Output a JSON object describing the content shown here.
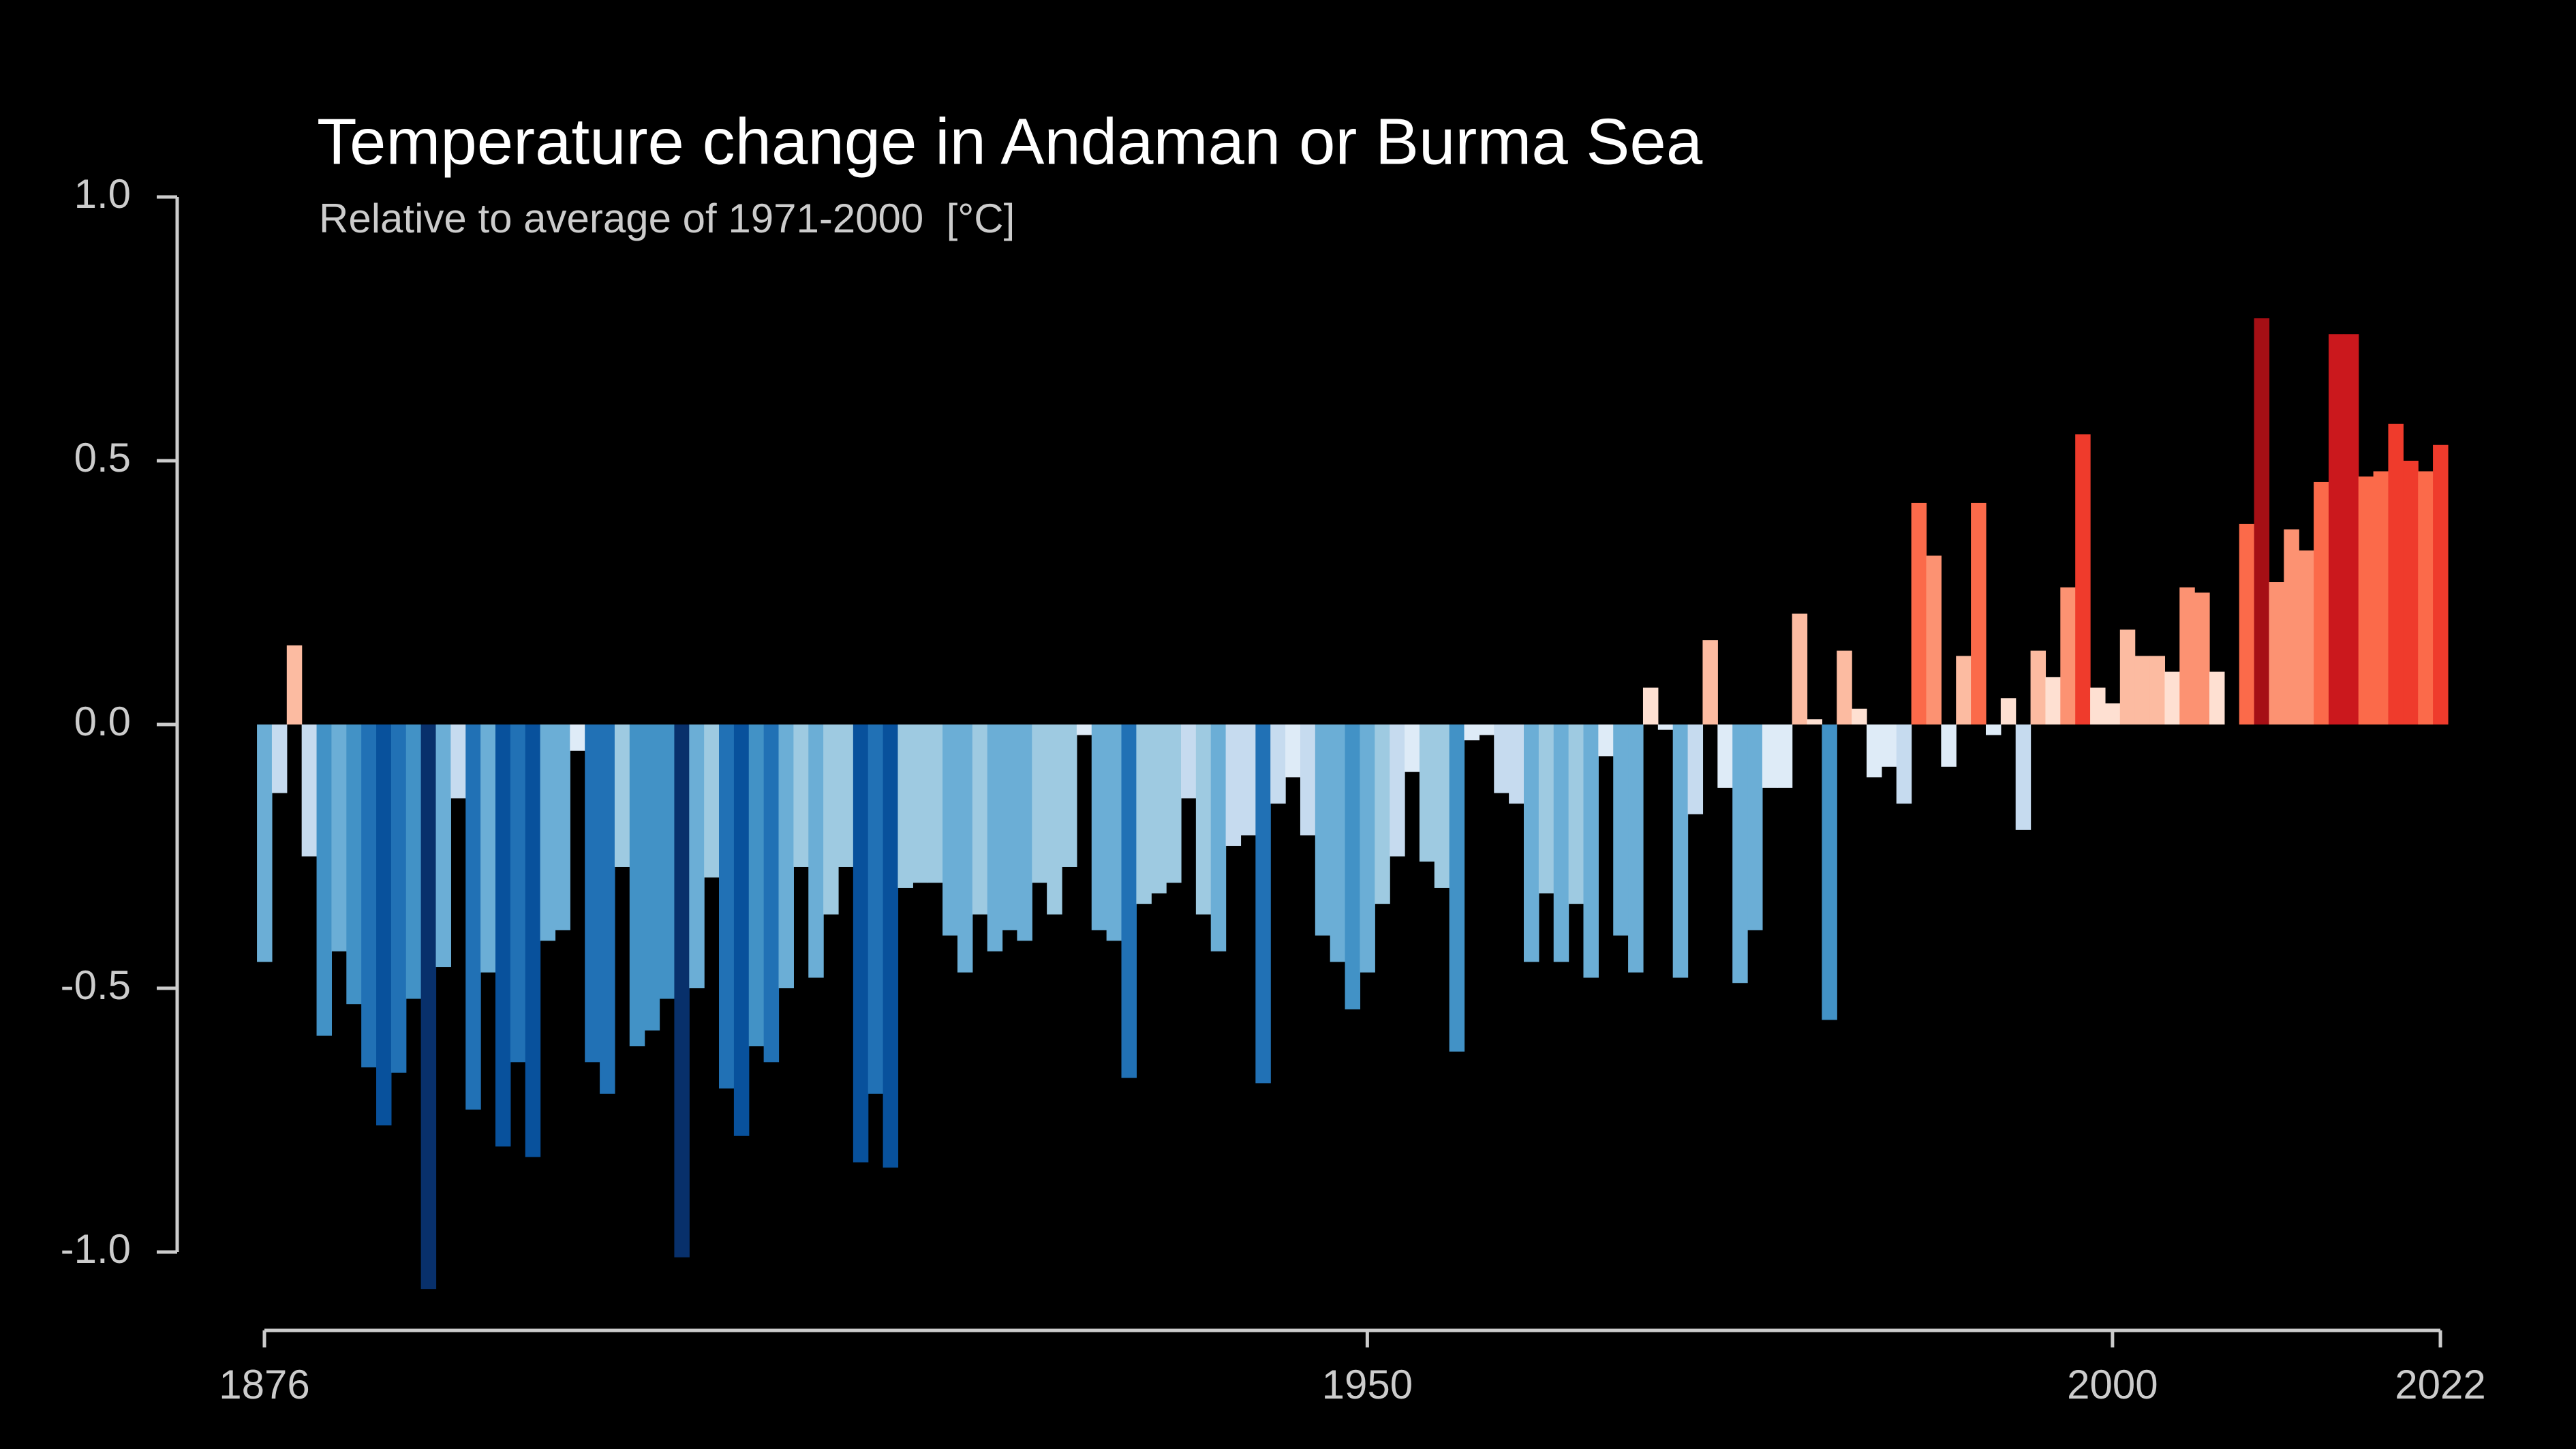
{
  "chart_data": {
    "type": "bar",
    "title": "Temperature change in Andaman or Burma Sea",
    "subtitle": "Relative to average of 1971-2000  [°C]",
    "x": [
      1876,
      1877,
      1878,
      1879,
      1880,
      1881,
      1882,
      1883,
      1884,
      1885,
      1886,
      1887,
      1888,
      1889,
      1890,
      1891,
      1892,
      1893,
      1894,
      1895,
      1896,
      1897,
      1898,
      1899,
      1900,
      1901,
      1902,
      1903,
      1904,
      1905,
      1906,
      1907,
      1908,
      1909,
      1910,
      1911,
      1912,
      1913,
      1914,
      1915,
      1916,
      1917,
      1918,
      1919,
      1920,
      1921,
      1922,
      1923,
      1924,
      1925,
      1926,
      1927,
      1928,
      1929,
      1930,
      1931,
      1932,
      1933,
      1934,
      1935,
      1936,
      1937,
      1938,
      1939,
      1940,
      1941,
      1942,
      1943,
      1944,
      1945,
      1946,
      1947,
      1948,
      1949,
      1950,
      1951,
      1952,
      1953,
      1954,
      1955,
      1956,
      1957,
      1958,
      1959,
      1960,
      1961,
      1962,
      1963,
      1964,
      1965,
      1966,
      1967,
      1968,
      1969,
      1970,
      1971,
      1972,
      1973,
      1974,
      1975,
      1976,
      1977,
      1978,
      1979,
      1980,
      1981,
      1982,
      1983,
      1984,
      1985,
      1986,
      1987,
      1988,
      1989,
      1990,
      1991,
      1992,
      1993,
      1994,
      1995,
      1996,
      1997,
      1998,
      1999,
      2000,
      2001,
      2002,
      2003,
      2004,
      2005,
      2006,
      2007,
      2008,
      2009,
      2010,
      2011,
      2012,
      2013,
      2014,
      2015,
      2016,
      2017,
      2018,
      2019,
      2020,
      2021,
      2022
    ],
    "values": [
      -0.45,
      -0.13,
      0.15,
      -0.25,
      -0.59,
      -0.43,
      -0.53,
      -0.65,
      -0.76,
      -0.66,
      -0.52,
      -1.07,
      -0.46,
      -0.14,
      -0.73,
      -0.47,
      -0.8,
      -0.64,
      -0.82,
      -0.41,
      -0.39,
      -0.05,
      -0.64,
      -0.7,
      -0.27,
      -0.61,
      -0.58,
      -0.52,
      -1.01,
      -0.5,
      -0.29,
      -0.69,
      -0.78,
      -0.61,
      -0.64,
      -0.5,
      -0.27,
      -0.48,
      -0.36,
      -0.27,
      -0.83,
      -0.7,
      -0.84,
      -0.31,
      -0.3,
      -0.3,
      -0.4,
      -0.47,
      -0.36,
      -0.43,
      -0.39,
      -0.41,
      -0.3,
      -0.36,
      -0.27,
      -0.02,
      -0.39,
      -0.41,
      -0.67,
      -0.34,
      -0.32,
      -0.3,
      -0.14,
      -0.36,
      -0.43,
      -0.23,
      -0.21,
      -0.68,
      -0.15,
      -0.1,
      -0.21,
      -0.4,
      -0.45,
      -0.54,
      -0.47,
      -0.34,
      -0.25,
      -0.09,
      -0.26,
      -0.31,
      -0.62,
      -0.03,
      -0.02,
      -0.13,
      -0.15,
      -0.45,
      -0.32,
      -0.45,
      -0.34,
      -0.48,
      -0.06,
      -0.4,
      -0.47,
      0.07,
      -0.01,
      -0.48,
      -0.17,
      0.16,
      -0.12,
      -0.49,
      -0.39,
      -0.12,
      -0.12,
      0.21,
      0.01,
      -0.56,
      0.14,
      0.03,
      -0.1,
      -0.08,
      -0.15,
      0.42,
      0.32,
      -0.08,
      0.13,
      0.42,
      -0.02,
      0.05,
      -0.2,
      0.14,
      0.09,
      0.26,
      0.55,
      0.07,
      0.04,
      0.18,
      0.13,
      0.13,
      0.1,
      0.26,
      0.25,
      0.1,
      0.0,
      0.38,
      0.77,
      0.27,
      0.37,
      0.33,
      0.46,
      0.74,
      0.74,
      0.47,
      0.48,
      0.57,
      0.5,
      0.48,
      0.53
    ],
    "palette": [
      "#08306b",
      "#08519c",
      "#2171b5",
      "#4292c6",
      "#6baed6",
      "#9ecae1",
      "#c6dbef",
      "#deebf7",
      "#fee0d2",
      "#fcbba1",
      "#fc9272",
      "#fb6a4a",
      "#ef3b2c",
      "#cb181d",
      "#a50f15",
      "#67000d"
    ],
    "xlim": [
      1876,
      2022
    ],
    "xticks": [
      1876,
      1950,
      2000,
      2022
    ],
    "ylim": [
      -1,
      1
    ],
    "yticks": [
      {
        "value": 1,
        "label": "1.0"
      },
      0.5,
      {
        "value": 0,
        "label": "0.0"
      },
      -0.5,
      {
        "value": -1,
        "label": "-1.0"
      }
    ]
  }
}
